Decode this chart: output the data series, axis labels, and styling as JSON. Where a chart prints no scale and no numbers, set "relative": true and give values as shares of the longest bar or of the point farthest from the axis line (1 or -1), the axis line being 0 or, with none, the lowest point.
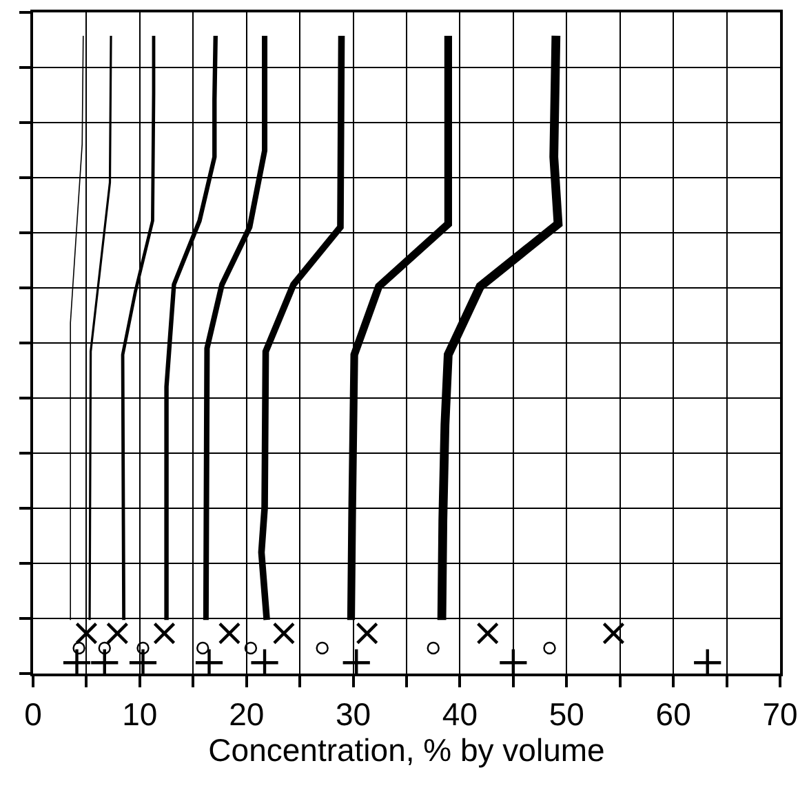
{
  "chart_data": {
    "type": "line",
    "relative": true,
    "xlabel": "Concentration, % by volume",
    "xlim": [
      0,
      70
    ],
    "xticks": [
      0,
      {
        "value": 5,
        "label": null
      },
      10,
      {
        "value": 15,
        "label": null
      },
      20,
      {
        "value": 25,
        "label": null
      },
      30,
      {
        "value": 35,
        "label": null
      },
      40,
      {
        "value": 45,
        "label": null
      },
      50,
      {
        "value": 55,
        "label": null
      },
      60,
      {
        "value": 65,
        "label": null
      },
      70
    ],
    "grid": true,
    "marker": "none",
    "line_style": "solid",
    "series": [
      {
        "color": "#000000",
        "x": [
          4.7,
          4.6,
          3.5,
          3.5
        ],
        "values": [
          1,
          0.83,
          0.55,
          0.084
        ]
      },
      {
        "color": "#000000",
        "x": [
          7.3,
          7.2,
          5.4,
          5.3
        ],
        "values": [
          1,
          0.77,
          0.505,
          0.084
        ]
      },
      {
        "color": "#000000",
        "x": [
          11.3,
          11.3,
          11.2,
          9.6,
          8.4,
          8.5
        ],
        "values": [
          1,
          0.91,
          0.71,
          0.6,
          0.5,
          0.084
        ]
      },
      {
        "color": "#000000",
        "x": [
          17.1,
          17.0,
          17.0,
          15.6,
          13.2,
          12.5,
          12.5
        ],
        "values": [
          1,
          0.9,
          0.81,
          0.71,
          0.61,
          0.45,
          0.084
        ]
      },
      {
        "color": "#000000",
        "x": [
          21.7,
          21.7,
          20.3,
          17.7,
          16.3,
          16.2
        ],
        "values": [
          1,
          0.82,
          0.7,
          0.61,
          0.51,
          0.084
        ]
      },
      {
        "color": "#000000",
        "x": [
          28.9,
          28.8,
          24.4,
          21.8,
          21.7,
          21.4,
          21.9
        ],
        "values": [
          1,
          0.7,
          0.61,
          0.505,
          0.26,
          0.19,
          0.084
        ]
      },
      {
        "color": "#000000",
        "x": [
          38.9,
          38.9,
          32.4,
          30.1,
          29.9,
          29.8
        ],
        "values": [
          1,
          0.705,
          0.607,
          0.5,
          0.25,
          0.084
        ]
      },
      {
        "color": "#000000",
        "x": [
          49.0,
          48.8,
          49.2,
          41.9,
          38.9,
          38.6,
          38.4,
          38.3
        ],
        "values": [
          1,
          0.81,
          0.705,
          0.607,
          0.5,
          0.39,
          0.24,
          0.084
        ]
      },
      {
        "type": "scatter",
        "marker": "x",
        "color": "#000000",
        "x": [
          5.0,
          7.9,
          12.3,
          18.4,
          23.5,
          31.3,
          42.6,
          54.4
        ],
        "values": [
          0.063,
          0.063,
          0.063,
          0.063,
          0.063,
          0.063,
          0.063,
          0.063
        ]
      },
      {
        "type": "scatter",
        "marker": "circle",
        "color": "#000000",
        "x": [
          4.3,
          6.7,
          10.3,
          15.9,
          20.4,
          27.1,
          37.5,
          48.4
        ],
        "values": [
          0.04,
          0.04,
          0.04,
          0.04,
          0.04,
          0.04,
          0.04,
          0.04
        ]
      },
      {
        "type": "scatter",
        "marker": "cross",
        "color": "#000000",
        "x": [
          4.1,
          6.7,
          10.3,
          16.5,
          21.7,
          30.3,
          45.0,
          63.2
        ],
        "values": [
          0.017,
          0.017,
          0.017,
          0.017,
          0.017,
          0.017,
          0.017,
          0.017
        ]
      }
    ]
  }
}
